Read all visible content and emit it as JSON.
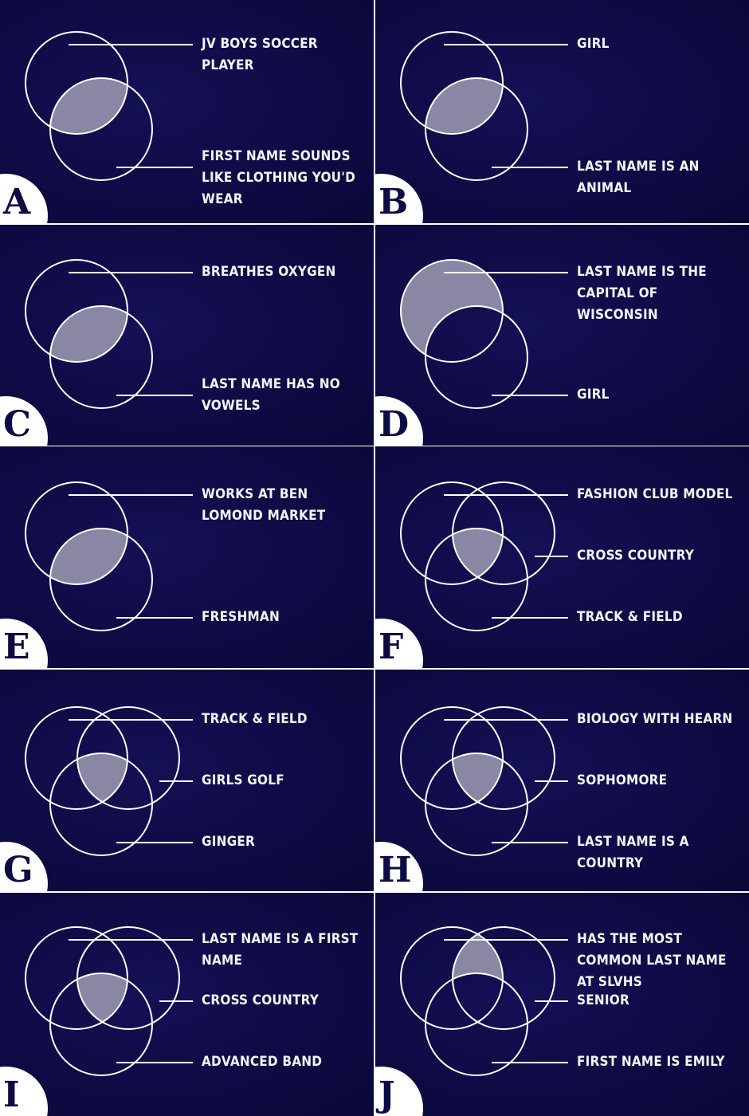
{
  "colors": {
    "background": "#0e0b45",
    "line": "#ffffff",
    "highlight": "#8a87a5",
    "letter": "#0d0a44"
  },
  "panels": [
    {
      "letter": "A",
      "circles": 2,
      "shaded": "AB",
      "labels": [
        "JV BOYS SOCCER PLAYER",
        "FIRST NAME SOUNDS LIKE CLOTHING YOU'D WEAR"
      ]
    },
    {
      "letter": "B",
      "circles": 2,
      "shaded": "AB",
      "labels": [
        "GIRL",
        "LAST NAME IS AN ANIMAL"
      ]
    },
    {
      "letter": "C",
      "circles": 2,
      "shaded": "AB",
      "labels": [
        "BREATHES OXYGEN",
        "LAST NAME HAS NO VOWELS"
      ]
    },
    {
      "letter": "D",
      "circles": 2,
      "shaded": "A-only",
      "labels": [
        "LAST NAME IS THE CAPITAL OF WISCONSIN",
        "GIRL"
      ]
    },
    {
      "letter": "E",
      "circles": 2,
      "shaded": "AB",
      "labels": [
        "WORKS AT BEN LOMOND MARKET",
        "FRESHMAN"
      ]
    },
    {
      "letter": "F",
      "circles": 3,
      "shaded": "ABC",
      "labels": [
        "FASHION CLUB MODEL",
        "CROSS COUNTRY",
        "TRACK & FIELD"
      ]
    },
    {
      "letter": "G",
      "circles": 3,
      "shaded": "ABC",
      "labels": [
        "TRACK & FIELD",
        "GIRLS GOLF",
        "GINGER"
      ]
    },
    {
      "letter": "H",
      "circles": 3,
      "shaded": "ABC",
      "labels": [
        "BIOLOGY WITH HEARN",
        "SOPHOMORE",
        "LAST NAME IS A COUNTRY"
      ]
    },
    {
      "letter": "I",
      "circles": 3,
      "shaded": "ABC",
      "labels": [
        "LAST NAME IS A FIRST NAME",
        "CROSS COUNTRY",
        "ADVANCED BAND"
      ]
    },
    {
      "letter": "J",
      "circles": 3,
      "shaded": "AB-not-C",
      "labels": [
        "HAS THE MOST COMMON LAST NAME AT SLVHS",
        "SENIOR",
        "FIRST NAME IS EMILY"
      ]
    }
  ]
}
